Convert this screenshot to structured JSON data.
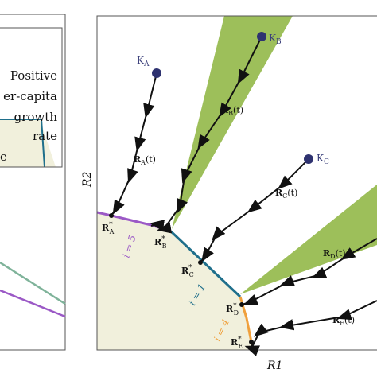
{
  "left_panel": {
    "legend_lines": [
      "Positive",
      "er-capita",
      "growth",
      "rate"
    ],
    "legend_partial": "e"
  },
  "right_panel": {
    "axis": {
      "xlabel": "R1",
      "ylabel": "R2"
    },
    "supply_points": [
      {
        "label": "K",
        "sub": "A"
      },
      {
        "label": "K",
        "sub": "B"
      },
      {
        "label": "K",
        "sub": "C"
      }
    ],
    "trajectory_labels": [
      {
        "main": "R",
        "sub": "A",
        "suffix": "(t)"
      },
      {
        "main": "R",
        "sub": "B",
        "suffix": "(t)"
      },
      {
        "main": "R",
        "sub": "C",
        "suffix": "(t)"
      },
      {
        "main": "R",
        "sub": "D",
        "suffix": "(t)"
      },
      {
        "main": "R",
        "sub": "E",
        "suffix": "(t)"
      }
    ],
    "equilibria": [
      {
        "main": "R",
        "star": "*",
        "sub": "A"
      },
      {
        "main": "R",
        "star": "*",
        "sub": "B"
      },
      {
        "main": "R",
        "star": "*",
        "sub": "C"
      },
      {
        "main": "R",
        "star": "*",
        "sub": "D"
      },
      {
        "main": "R",
        "star": "*",
        "sub": "E"
      }
    ],
    "curve_labels": [
      "i = 5",
      "i = 1",
      "i = 4"
    ],
    "colors": {
      "coexistence_wedge": "#9dbf5a",
      "feasible_region": "#f1f0dc",
      "curve_i5": "#9b59c6",
      "curve_i1": "#1f6f8b",
      "curve_i4": "#f0a03c",
      "supply_point": "#2e3270",
      "left_line_teal": "#7fb39a",
      "left_line_purple": "#9b59c6"
    }
  }
}
